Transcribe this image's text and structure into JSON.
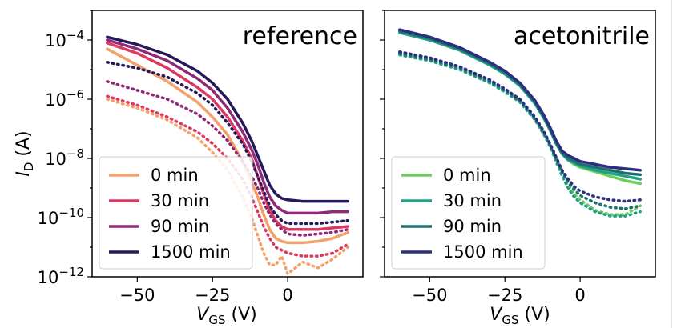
{
  "chart_data": [
    {
      "type": "line",
      "title": "reference",
      "xlabel": "V_GS (V)",
      "ylabel": "I_D (A)",
      "xlim": [
        -65,
        25
      ],
      "ylim_log10": [
        -12,
        -3
      ],
      "yscale": "log",
      "x_ticks": [
        {
          "value": -50,
          "label": "−50"
        },
        {
          "value": -25,
          "label": "−25"
        },
        {
          "value": 0,
          "label": "0"
        }
      ],
      "y_ticks": [
        {
          "value": -4,
          "label": "10−4"
        },
        {
          "value": -6,
          "label": "10−6"
        },
        {
          "value": -8,
          "label": "10−8"
        },
        {
          "value": -10,
          "label": "10−10"
        },
        {
          "value": -12,
          "label": "10−12"
        }
      ],
      "legend": {
        "position": "lower-left",
        "entries": [
          "0 min",
          "30 min",
          "90 min",
          "1500 min"
        ]
      },
      "series": [
        {
          "name": "0 min",
          "color": "#f4a06a",
          "style": "solid",
          "x": [
            -60,
            -50,
            -40,
            -30,
            -25,
            -20,
            -15,
            -12,
            -10,
            -8,
            -6,
            -4,
            -2,
            0,
            5,
            10,
            15,
            20
          ],
          "log10_y": [
            -4.3,
            -4.85,
            -5.4,
            -6.1,
            -6.6,
            -7.2,
            -8.1,
            -8.8,
            -9.3,
            -9.9,
            -10.4,
            -10.7,
            -10.8,
            -10.85,
            -10.85,
            -10.8,
            -10.7,
            -10.5
          ]
        },
        {
          "name": "0 min",
          "color": "#f4a06a",
          "style": "dotted",
          "x": [
            -60,
            -50,
            -40,
            -30,
            -25,
            -20,
            -15,
            -12,
            -10,
            -8,
            -6,
            -4,
            -2,
            0,
            5,
            10,
            15,
            20
          ],
          "log10_y": [
            -6.0,
            -6.3,
            -6.7,
            -7.3,
            -7.8,
            -8.4,
            -9.3,
            -10.0,
            -10.6,
            -11.2,
            -11.6,
            -11.6,
            -11.3,
            -11.9,
            -11.5,
            -11.7,
            -11.4,
            -11.0
          ]
        },
        {
          "name": "30 min",
          "color": "#dc3960",
          "style": "solid",
          "x": [
            -60,
            -50,
            -40,
            -30,
            -25,
            -20,
            -15,
            -12,
            -10,
            -8,
            -6,
            -4,
            -2,
            0,
            5,
            10,
            15,
            20
          ],
          "log10_y": [
            -4.1,
            -4.45,
            -4.95,
            -5.6,
            -6.0,
            -6.6,
            -7.4,
            -8.0,
            -8.6,
            -9.2,
            -9.75,
            -10.1,
            -10.3,
            -10.4,
            -10.4,
            -10.4,
            -10.35,
            -10.3
          ]
        },
        {
          "name": "30 min",
          "color": "#dc3960",
          "style": "dotted",
          "x": [
            -60,
            -50,
            -40,
            -30,
            -25,
            -20,
            -15,
            -12,
            -10,
            -8,
            -6,
            -4,
            -2,
            0,
            5,
            10,
            15,
            20
          ],
          "log10_y": [
            -5.9,
            -6.2,
            -6.6,
            -7.1,
            -7.5,
            -8.0,
            -8.7,
            -9.3,
            -9.8,
            -10.3,
            -10.7,
            -11.0,
            -11.1,
            -11.2,
            -11.3,
            -11.3,
            -11.2,
            -10.9
          ]
        },
        {
          "name": "90 min",
          "color": "#8f2a78",
          "style": "solid",
          "x": [
            -60,
            -50,
            -40,
            -30,
            -25,
            -20,
            -15,
            -12,
            -10,
            -8,
            -6,
            -4,
            -2,
            0,
            5,
            10,
            15,
            20
          ],
          "log10_y": [
            -4.0,
            -4.3,
            -4.7,
            -5.3,
            -5.7,
            -6.3,
            -7.1,
            -7.7,
            -8.2,
            -8.8,
            -9.3,
            -9.6,
            -9.75,
            -9.85,
            -9.85,
            -9.85,
            -9.8,
            -9.8
          ]
        },
        {
          "name": "90 min",
          "color": "#8f2a78",
          "style": "dotted",
          "x": [
            -60,
            -50,
            -40,
            -30,
            -25,
            -20,
            -15,
            -12,
            -10,
            -8,
            -6,
            -4,
            -2,
            0,
            5,
            10,
            15,
            20
          ],
          "log10_y": [
            -5.4,
            -5.7,
            -6.0,
            -6.5,
            -6.9,
            -7.4,
            -8.1,
            -8.6,
            -9.0,
            -9.5,
            -9.9,
            -10.2,
            -10.4,
            -10.55,
            -10.6,
            -10.55,
            -10.5,
            -10.4
          ]
        },
        {
          "name": "1500 min",
          "color": "#26185a",
          "style": "solid",
          "x": [
            -60,
            -50,
            -40,
            -30,
            -25,
            -20,
            -15,
            -12,
            -10,
            -8,
            -6,
            -4,
            -2,
            0,
            5,
            10,
            15,
            20
          ],
          "log10_y": [
            -3.9,
            -4.15,
            -4.5,
            -5.05,
            -5.45,
            -6.0,
            -6.8,
            -7.4,
            -7.9,
            -8.4,
            -8.9,
            -9.2,
            -9.35,
            -9.4,
            -9.45,
            -9.45,
            -9.45,
            -9.45
          ]
        },
        {
          "name": "1500 min",
          "color": "#26185a",
          "style": "dotted",
          "x": [
            -60,
            -50,
            -40,
            -30,
            -25,
            -20,
            -15,
            -12,
            -10,
            -8,
            -6,
            -4,
            -2,
            0,
            5,
            10,
            15,
            20
          ],
          "log10_y": [
            -4.75,
            -4.95,
            -5.25,
            -5.8,
            -6.2,
            -6.8,
            -7.5,
            -8.1,
            -8.6,
            -9.1,
            -9.6,
            -9.9,
            -10.1,
            -10.2,
            -10.2,
            -10.2,
            -10.15,
            -10.1
          ]
        }
      ]
    },
    {
      "type": "line",
      "title": "acetonitrile",
      "xlabel": "V_GS (V)",
      "ylabel": "",
      "xlim": [
        -65,
        25
      ],
      "ylim_log10": [
        -12,
        -3
      ],
      "yscale": "log",
      "x_ticks": [
        {
          "value": -50,
          "label": "−50"
        },
        {
          "value": -25,
          "label": "−25"
        },
        {
          "value": 0,
          "label": "0"
        }
      ],
      "y_ticks": [],
      "legend": {
        "position": "lower-left",
        "entries": [
          "0 min",
          "30 min",
          "90 min",
          "1500 min"
        ]
      },
      "series": [
        {
          "name": "0 min",
          "color": "#6ccd5a",
          "style": "solid",
          "x": [
            -60,
            -50,
            -40,
            -30,
            -25,
            -20,
            -15,
            -12,
            -10,
            -8,
            -6,
            -4,
            -2,
            0,
            5,
            10,
            15,
            20
          ],
          "log10_y": [
            -3.7,
            -3.95,
            -4.3,
            -4.8,
            -5.1,
            -5.5,
            -6.1,
            -6.6,
            -7.0,
            -7.5,
            -7.85,
            -8.05,
            -8.2,
            -8.3,
            -8.45,
            -8.6,
            -8.75,
            -8.85
          ]
        },
        {
          "name": "0 min",
          "color": "#6ccd5a",
          "style": "dotted",
          "x": [
            -60,
            -50,
            -40,
            -30,
            -25,
            -20,
            -15,
            -12,
            -10,
            -8,
            -6,
            -4,
            -2,
            0,
            5,
            10,
            15,
            20
          ],
          "log10_y": [
            -4.5,
            -4.7,
            -5.0,
            -5.45,
            -5.75,
            -6.1,
            -6.7,
            -7.2,
            -7.6,
            -8.1,
            -8.6,
            -8.9,
            -9.2,
            -9.4,
            -9.75,
            -9.9,
            -9.9,
            -9.6
          ]
        },
        {
          "name": "30 min",
          "color": "#1fa187",
          "style": "solid",
          "x": [
            -60,
            -50,
            -40,
            -30,
            -25,
            -20,
            -15,
            -12,
            -10,
            -8,
            -6,
            -4,
            -2,
            0,
            5,
            10,
            15,
            20
          ],
          "log10_y": [
            -3.75,
            -4.0,
            -4.35,
            -4.85,
            -5.15,
            -5.55,
            -6.15,
            -6.65,
            -7.05,
            -7.5,
            -7.85,
            -8.05,
            -8.15,
            -8.25,
            -8.4,
            -8.5,
            -8.6,
            -8.7
          ]
        },
        {
          "name": "30 min",
          "color": "#1fa187",
          "style": "dotted",
          "x": [
            -60,
            -50,
            -40,
            -30,
            -25,
            -20,
            -15,
            -12,
            -10,
            -8,
            -6,
            -4,
            -2,
            0,
            5,
            10,
            15,
            20
          ],
          "log10_y": [
            -4.5,
            -4.7,
            -5.0,
            -5.45,
            -5.75,
            -6.1,
            -6.7,
            -7.2,
            -7.6,
            -8.1,
            -8.6,
            -9.0,
            -9.3,
            -9.5,
            -9.8,
            -9.95,
            -9.95,
            -9.8
          ]
        },
        {
          "name": "90 min",
          "color": "#1f6f6f",
          "style": "solid",
          "x": [
            -60,
            -50,
            -40,
            -30,
            -25,
            -20,
            -15,
            -12,
            -10,
            -8,
            -6,
            -4,
            -2,
            0,
            5,
            10,
            15,
            20
          ],
          "log10_y": [
            -3.7,
            -3.95,
            -4.3,
            -4.8,
            -5.1,
            -5.5,
            -6.1,
            -6.6,
            -7.0,
            -7.45,
            -7.8,
            -8.0,
            -8.1,
            -8.2,
            -8.3,
            -8.4,
            -8.5,
            -8.55
          ]
        },
        {
          "name": "90 min",
          "color": "#1f6f6f",
          "style": "dotted",
          "x": [
            -60,
            -50,
            -40,
            -30,
            -25,
            -20,
            -15,
            -12,
            -10,
            -8,
            -6,
            -4,
            -2,
            0,
            5,
            10,
            15,
            20
          ],
          "log10_y": [
            -4.45,
            -4.65,
            -4.95,
            -5.4,
            -5.7,
            -6.05,
            -6.65,
            -7.15,
            -7.55,
            -8.0,
            -8.45,
            -8.8,
            -9.05,
            -9.25,
            -9.5,
            -9.65,
            -9.7,
            -9.6
          ]
        },
        {
          "name": "1500 min",
          "color": "#2b2f80",
          "style": "solid",
          "x": [
            -60,
            -50,
            -40,
            -30,
            -25,
            -20,
            -15,
            -12,
            -10,
            -8,
            -6,
            -4,
            -2,
            0,
            5,
            10,
            15,
            20
          ],
          "log10_y": [
            -3.65,
            -3.9,
            -4.25,
            -4.75,
            -5.05,
            -5.45,
            -6.05,
            -6.55,
            -6.95,
            -7.4,
            -7.75,
            -7.9,
            -8.0,
            -8.1,
            -8.2,
            -8.3,
            -8.35,
            -8.4
          ]
        },
        {
          "name": "1500 min",
          "color": "#2b2f80",
          "style": "dotted",
          "x": [
            -60,
            -50,
            -40,
            -30,
            -25,
            -20,
            -15,
            -12,
            -10,
            -8,
            -6,
            -4,
            -2,
            0,
            5,
            10,
            15,
            20
          ],
          "log10_y": [
            -4.4,
            -4.6,
            -4.9,
            -5.35,
            -5.65,
            -6.0,
            -6.6,
            -7.1,
            -7.5,
            -7.95,
            -8.4,
            -8.7,
            -8.95,
            -9.1,
            -9.3,
            -9.4,
            -9.45,
            -9.4
          ]
        }
      ]
    }
  ],
  "axis_labels": {
    "y_var": "I",
    "y_sub": "D",
    "y_unit": " (A)",
    "x_var": "V",
    "x_sub": "GS",
    "x_unit": " (V)"
  }
}
